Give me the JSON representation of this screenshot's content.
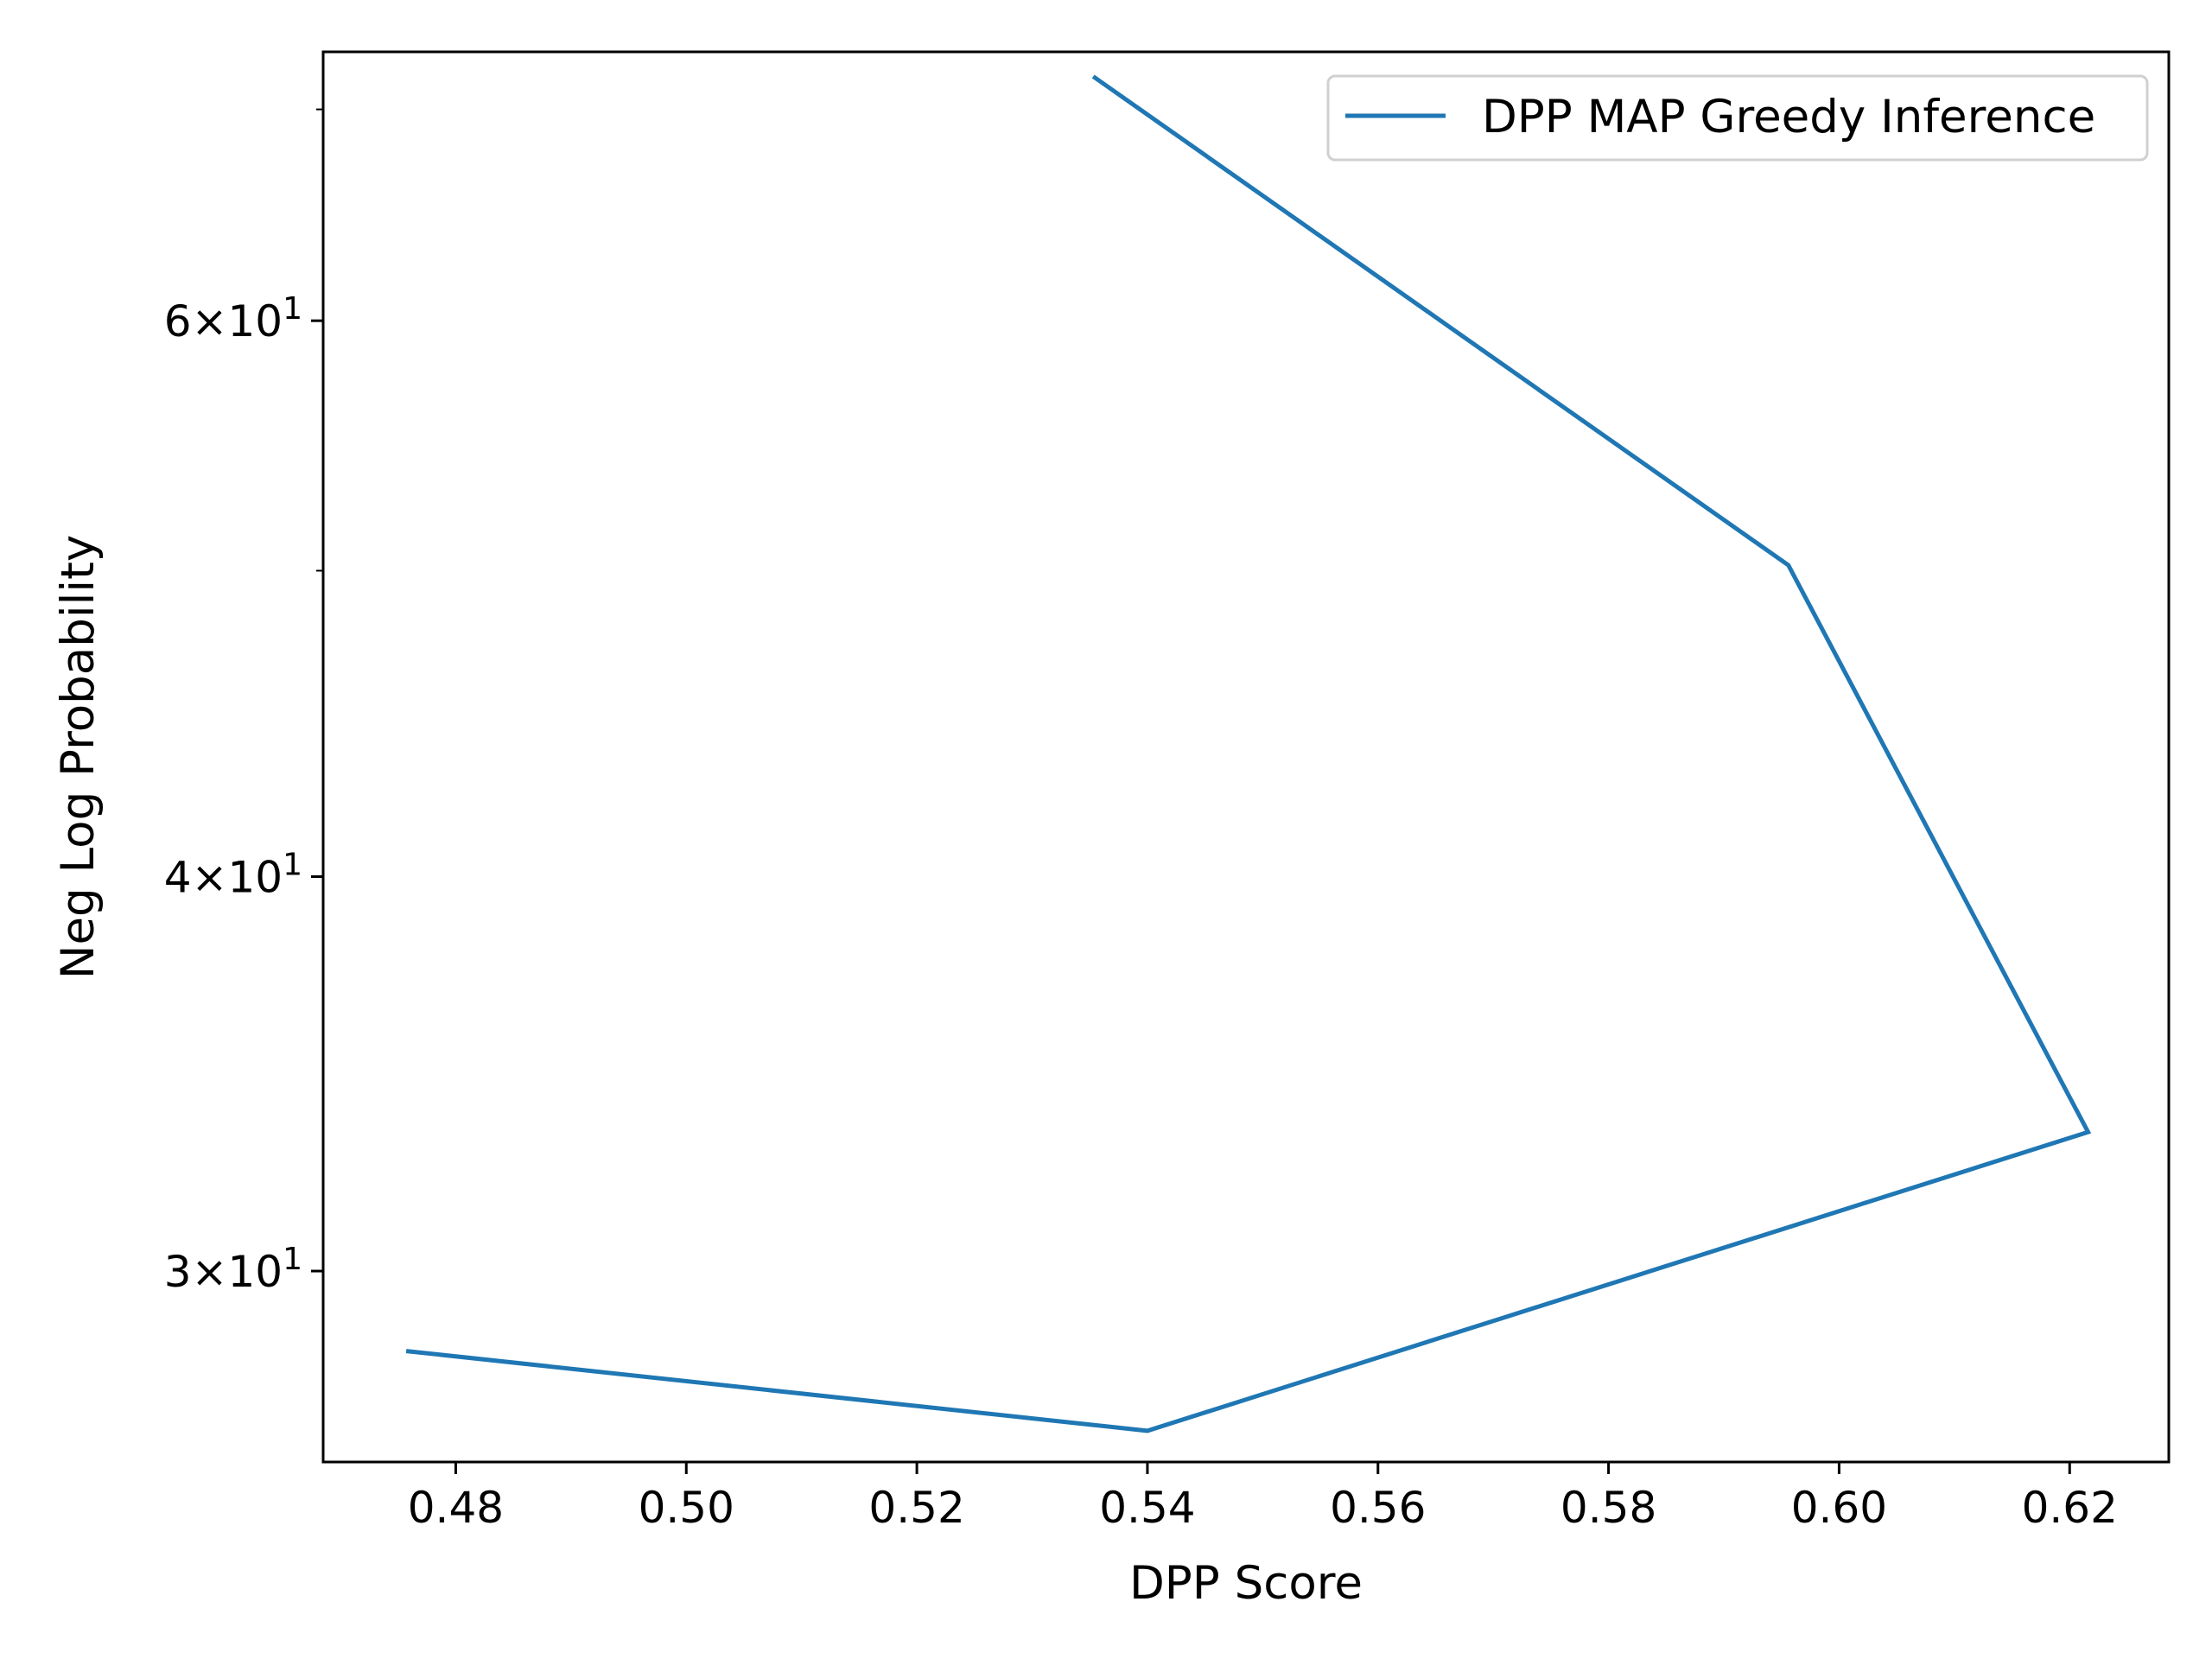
{
  "chart_data": {
    "type": "line",
    "title": "",
    "xlabel": "DPP Score",
    "ylabel": "Neg Log Probability",
    "y_scale": "log",
    "xlim": [
      0.4685,
      0.6286
    ],
    "ylim": [
      26.1,
      73.0
    ],
    "x_ticks": [
      {
        "value": 0.48,
        "label": "0.48"
      },
      {
        "value": 0.5,
        "label": "0.50"
      },
      {
        "value": 0.52,
        "label": "0.52"
      },
      {
        "value": 0.54,
        "label": "0.54"
      },
      {
        "value": 0.56,
        "label": "0.56"
      },
      {
        "value": 0.58,
        "label": "0.58"
      },
      {
        "value": 0.6,
        "label": "0.60"
      },
      {
        "value": 0.62,
        "label": "0.62"
      }
    ],
    "y_ticks": [
      {
        "value": 30,
        "mantissa": "3",
        "base": "10",
        "exponent": "1"
      },
      {
        "value": 40,
        "mantissa": "4",
        "base": "10",
        "exponent": "1"
      },
      {
        "value": 60,
        "mantissa": "6",
        "base": "10",
        "exponent": "1"
      }
    ],
    "y_minor_ticks": [
      50,
      70
    ],
    "series": [
      {
        "name": "DPP MAP Greedy Inference",
        "color": "#1f77b4",
        "x": [
          0.5353,
          0.5956,
          0.6216,
          0.54,
          0.4757
        ],
        "y": [
          71.7,
          50.2,
          33.2,
          26.7,
          28.3
        ]
      }
    ],
    "legend": {
      "position": "top-right"
    },
    "grid": false
  }
}
